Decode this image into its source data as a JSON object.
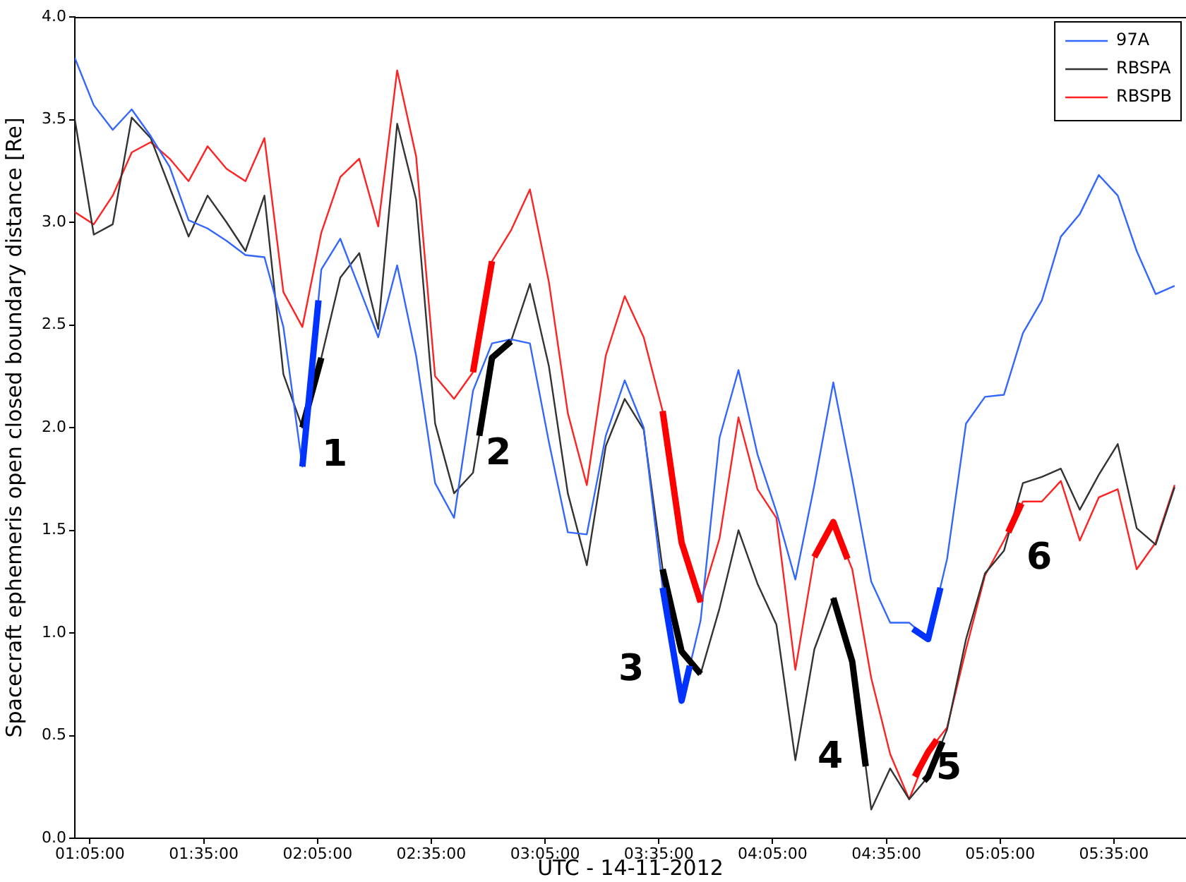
{
  "chart_data": {
    "type": "line",
    "xlabel": "UTC - 14-11-2012",
    "ylabel": "Spacecraft ephemeris open closed boundary distance [Re]",
    "x": [
      1.0167,
      1.1,
      1.1833,
      1.2667,
      1.35,
      1.4333,
      1.5167,
      1.6,
      1.6833,
      1.7667,
      1.85,
      1.9333,
      2.0167,
      2.1,
      2.1833,
      2.2667,
      2.35,
      2.4333,
      2.5167,
      2.6,
      2.6833,
      2.7667,
      2.85,
      2.9333,
      3.0167,
      3.1,
      3.1833,
      3.2667,
      3.35,
      3.4333,
      3.5167,
      3.6,
      3.6833,
      3.7667,
      3.85,
      3.9333,
      4.0167,
      4.1,
      4.1833,
      4.2667,
      4.35,
      4.4333,
      4.5167,
      4.6,
      4.6833,
      4.7667,
      4.85,
      4.9333,
      5.0167,
      5.1,
      5.1833,
      5.2667,
      5.35,
      5.4333,
      5.5167,
      5.6,
      5.6833,
      5.7667,
      5.85
    ],
    "series": [
      {
        "name": "97A",
        "color": "#3366ff",
        "values": [
          3.8,
          3.57,
          3.45,
          3.55,
          3.42,
          3.27,
          3.01,
          2.97,
          2.91,
          2.84,
          2.83,
          2.49,
          1.81,
          2.77,
          2.92,
          2.68,
          2.44,
          2.79,
          2.35,
          1.73,
          1.56,
          2.18,
          2.41,
          2.43,
          2.41,
          1.93,
          1.49,
          1.48,
          1.96,
          2.23,
          2.0,
          1.22,
          0.67,
          1.06,
          1.95,
          2.28,
          1.87,
          1.59,
          1.26,
          1.72,
          2.22,
          1.75,
          1.25,
          1.05,
          1.05,
          0.97,
          1.36,
          2.02,
          2.15,
          2.16,
          2.46,
          2.62,
          2.93,
          3.04,
          3.23,
          3.13,
          2.86,
          2.65,
          2.69
        ]
      },
      {
        "name": "RBSPA",
        "color": "#333333",
        "values": [
          3.5,
          2.94,
          2.99,
          3.51,
          3.41,
          3.17,
          2.93,
          3.13,
          3.0,
          2.86,
          3.13,
          2.26,
          2.0,
          2.34,
          2.73,
          2.85,
          2.48,
          3.48,
          3.11,
          2.02,
          1.68,
          1.78,
          2.34,
          2.42,
          2.7,
          2.3,
          1.68,
          1.33,
          1.91,
          2.14,
          1.99,
          1.31,
          0.91,
          0.8,
          1.12,
          1.5,
          1.24,
          1.04,
          0.38,
          0.92,
          1.17,
          0.86,
          0.14,
          0.34,
          0.19,
          0.3,
          0.53,
          0.97,
          1.29,
          1.4,
          1.73,
          1.76,
          1.8,
          1.6,
          1.77,
          1.92,
          1.51,
          1.43,
          1.71
        ]
      },
      {
        "name": "RBSPB",
        "color": "#ff2222",
        "values": [
          3.05,
          2.99,
          3.13,
          3.34,
          3.39,
          3.31,
          3.2,
          3.37,
          3.26,
          3.2,
          3.41,
          2.66,
          2.49,
          2.95,
          3.22,
          3.31,
          2.98,
          3.74,
          3.32,
          2.25,
          2.14,
          2.27,
          2.81,
          2.96,
          3.16,
          2.71,
          2.07,
          1.72,
          2.35,
          2.64,
          2.44,
          2.08,
          1.44,
          1.15,
          1.46,
          2.05,
          1.7,
          1.56,
          0.82,
          1.37,
          1.54,
          1.31,
          0.78,
          0.41,
          0.19,
          0.42,
          0.54,
          0.92,
          1.28,
          1.45,
          1.64,
          1.64,
          1.74,
          1.45,
          1.66,
          1.7,
          1.31,
          1.44,
          1.72
        ]
      },
      {
        "color": "#0033ff",
        "x": [
          2.0167,
          2.0875
        ],
        "values": [
          1.81,
          2.62
        ]
      },
      {
        "color": "#000000",
        "x": [
          2.0167,
          2.1
        ],
        "values": [
          2.0,
          2.34
        ]
      },
      {
        "color": "#ff0000",
        "x": [
          2.7667,
          2.85
        ],
        "values": [
          2.27,
          2.81
        ]
      },
      {
        "color": "#000000",
        "x": [
          2.7942,
          2.85,
          2.9333
        ],
        "values": [
          1.96,
          2.34,
          2.42
        ]
      },
      {
        "color": "#ff0000",
        "x": [
          3.6,
          3.6833,
          3.7667
        ],
        "values": [
          2.08,
          1.44,
          1.15
        ]
      },
      {
        "color": "#0033ff",
        "x": [
          3.6,
          3.6833,
          3.7192
        ],
        "values": [
          1.22,
          0.67,
          0.84
        ]
      },
      {
        "color": "#000000",
        "x": [
          3.6,
          3.6833,
          3.7667
        ],
        "values": [
          1.31,
          0.91,
          0.8
        ]
      },
      {
        "color": "#ff0000",
        "x": [
          4.2667,
          4.35,
          4.4125
        ],
        "values": [
          1.37,
          1.54,
          1.36
        ]
      },
      {
        "color": "#000000",
        "x": [
          4.35,
          4.4333,
          4.4925
        ],
        "values": [
          1.17,
          0.86,
          0.35
        ]
      },
      {
        "color": "#0033ff",
        "x": [
          4.7,
          4.7667,
          4.8208
        ],
        "values": [
          1.02,
          0.97,
          1.22
        ]
      },
      {
        "color": "#ff0000",
        "x": [
          4.7083,
          4.7667,
          4.805
        ],
        "values": [
          0.3,
          0.42,
          0.48
        ]
      },
      {
        "color": "#000000",
        "x": [
          4.7492,
          4.7667,
          4.83
        ],
        "values": [
          0.28,
          0.3,
          0.47
        ]
      },
      {
        "color": "#ff0000",
        "x": [
          5.119,
          5.177
        ],
        "values": [
          1.49,
          1.63
        ]
      }
    ],
    "xlim": [
      1.0167,
      5.9
    ],
    "xticks": [
      {
        "value": 1.0833,
        "label": "01:05:00"
      },
      {
        "value": 1.5833,
        "label": "01:35:00"
      },
      {
        "value": 2.0833,
        "label": "02:05:00"
      },
      {
        "value": 2.5833,
        "label": "02:35:00"
      },
      {
        "value": 3.0833,
        "label": "03:05:00"
      },
      {
        "value": 3.5833,
        "label": "03:35:00"
      },
      {
        "value": 4.0833,
        "label": "04:05:00"
      },
      {
        "value": 4.5833,
        "label": "04:35:00"
      },
      {
        "value": 5.0833,
        "label": "05:05:00"
      },
      {
        "value": 5.5833,
        "label": "05:35:00"
      }
    ],
    "ylim": [
      0,
      4
    ],
    "yticks": [
      {
        "value": 0,
        "label": "0.0"
      },
      {
        "value": 0.5,
        "label": "0.5"
      },
      {
        "value": 1,
        "label": "1.0"
      },
      {
        "value": 1.5,
        "label": "1.5"
      },
      {
        "value": 2,
        "label": "2.0"
      },
      {
        "value": 2.5,
        "label": "2.5"
      },
      {
        "value": 3,
        "label": "3.0"
      },
      {
        "value": 3.5,
        "label": "3.5"
      },
      {
        "value": 4,
        "label": "4.0"
      }
    ],
    "annotations": [
      "1",
      "2",
      "3",
      "4",
      "5",
      "6"
    ],
    "grid": false,
    "legend": "top right",
    "line_style": "solid"
  }
}
